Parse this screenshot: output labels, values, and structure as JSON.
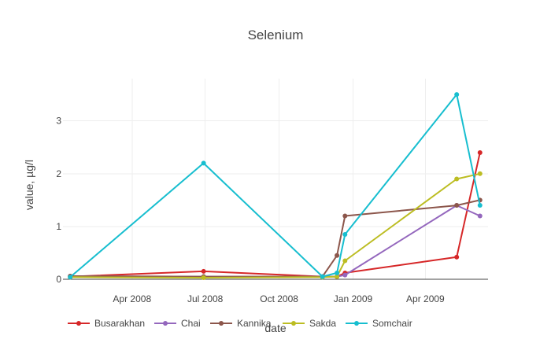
{
  "chart_data": {
    "type": "line",
    "title": "Selenium",
    "xlabel": "date",
    "ylabel": "value, µg/l",
    "xlim": [
      "2008-01-06",
      "2009-06-18"
    ],
    "ylim": [
      0,
      3.8
    ],
    "grid": true,
    "legend_position": "bottom",
    "x_ticks": [
      {
        "date": "2008-04-01",
        "label": "Apr 2008"
      },
      {
        "date": "2008-07-01",
        "label": "Jul 2008"
      },
      {
        "date": "2008-10-01",
        "label": "Oct 2008"
      },
      {
        "date": "2009-01-01",
        "label": "Jan 2009"
      },
      {
        "date": "2009-04-01",
        "label": "Apr 2009"
      }
    ],
    "y_ticks": [
      {
        "value": 0,
        "label": "0"
      },
      {
        "value": 1,
        "label": "1"
      },
      {
        "value": 2,
        "label": "2"
      },
      {
        "value": 3,
        "label": "3"
      }
    ],
    "series": [
      {
        "name": "Busarakhan",
        "color": "#d62728",
        "points": [
          {
            "x": "2008-01-15",
            "y": 0.05
          },
          {
            "x": "2008-06-29",
            "y": 0.15
          },
          {
            "x": "2008-11-24",
            "y": 0.05
          },
          {
            "x": "2008-12-12",
            "y": 0.05
          },
          {
            "x": "2008-12-22",
            "y": 0.12
          },
          {
            "x": "2009-05-10",
            "y": 0.42
          },
          {
            "x": "2009-06-08",
            "y": 2.4
          }
        ]
      },
      {
        "name": "Chai",
        "color": "#9467bd",
        "points": [
          {
            "x": "2008-01-15",
            "y": 0.06
          },
          {
            "x": "2008-06-29",
            "y": 0.05
          },
          {
            "x": "2008-11-24",
            "y": 0.05
          },
          {
            "x": "2008-12-12",
            "y": 0.05
          },
          {
            "x": "2008-12-22",
            "y": 0.08
          },
          {
            "x": "2009-05-10",
            "y": 1.4
          },
          {
            "x": "2009-06-08",
            "y": 1.2
          }
        ]
      },
      {
        "name": "Kannika",
        "color": "#8c564b",
        "points": [
          {
            "x": "2008-01-15",
            "y": 0.06
          },
          {
            "x": "2008-06-29",
            "y": 0.05
          },
          {
            "x": "2008-11-24",
            "y": 0.05
          },
          {
            "x": "2008-12-12",
            "y": 0.45
          },
          {
            "x": "2008-12-22",
            "y": 1.2
          },
          {
            "x": "2009-05-10",
            "y": 1.4
          },
          {
            "x": "2009-06-08",
            "y": 1.5
          }
        ]
      },
      {
        "name": "Sakda",
        "color": "#bcbd22",
        "points": [
          {
            "x": "2008-01-15",
            "y": 0.04
          },
          {
            "x": "2008-06-29",
            "y": 0.03
          },
          {
            "x": "2008-11-24",
            "y": 0.04
          },
          {
            "x": "2008-12-12",
            "y": 0.05
          },
          {
            "x": "2008-12-22",
            "y": 0.35
          },
          {
            "x": "2009-05-10",
            "y": 1.9
          },
          {
            "x": "2009-06-08",
            "y": 2.0
          }
        ]
      },
      {
        "name": "Somchair",
        "color": "#17becf",
        "points": [
          {
            "x": "2008-01-15",
            "y": 0.04
          },
          {
            "x": "2008-06-29",
            "y": 2.2
          },
          {
            "x": "2008-11-24",
            "y": 0.05
          },
          {
            "x": "2008-12-12",
            "y": 0.12
          },
          {
            "x": "2008-12-22",
            "y": 0.85
          },
          {
            "x": "2009-05-10",
            "y": 3.5
          },
          {
            "x": "2009-06-08",
            "y": 1.4
          }
        ]
      }
    ]
  }
}
